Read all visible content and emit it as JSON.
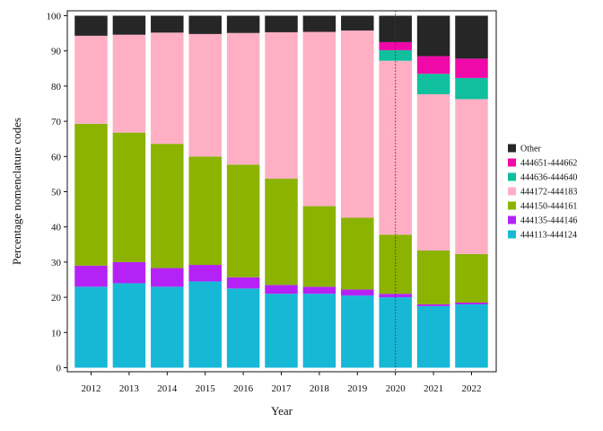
{
  "chart_data": {
    "type": "bar",
    "stacked": true,
    "title": "",
    "xlabel": "Year",
    "ylabel": "Percentage nomenclature codes",
    "ylim": [
      0,
      100
    ],
    "yticks": [
      0,
      10,
      20,
      30,
      40,
      50,
      60,
      70,
      80,
      90,
      100
    ],
    "grid": false,
    "legend_position": "right",
    "reference_line": {
      "x": "2020",
      "style": "dotted",
      "color": "#8b1a1a"
    },
    "categories": [
      "2012",
      "2013",
      "2014",
      "2015",
      "2016",
      "2017",
      "2018",
      "2019",
      "2020",
      "2021",
      "2022"
    ],
    "series": [
      {
        "name": "444113-444124",
        "color": "#17b8d6",
        "values": [
          23.0,
          24.0,
          23.0,
          24.5,
          22.5,
          21.0,
          21.0,
          20.5,
          20.0,
          17.5,
          18.0
        ]
      },
      {
        "name": "444135-444146",
        "color": "#b522f5",
        "values": [
          6.0,
          6.0,
          5.3,
          4.7,
          3.2,
          2.5,
          2.0,
          1.7,
          1.0,
          0.5,
          0.5
        ]
      },
      {
        "name": "444150-444161",
        "color": "#8bb300",
        "values": [
          40.3,
          36.8,
          35.3,
          30.8,
          32.0,
          30.2,
          22.9,
          20.4,
          16.8,
          15.3,
          13.8
        ]
      },
      {
        "name": "444172-444183",
        "color": "#ffafc4",
        "values": [
          25.0,
          27.8,
          31.6,
          34.8,
          37.4,
          41.6,
          49.5,
          53.2,
          49.4,
          44.4,
          44.0
        ]
      },
      {
        "name": "444636-444640",
        "color": "#0fbf9d",
        "values": [
          0,
          0,
          0,
          0,
          0,
          0,
          0,
          0,
          3.0,
          5.8,
          6.0
        ]
      },
      {
        "name": "444651-444662",
        "color": "#f008a8",
        "values": [
          0,
          0,
          0,
          0,
          0,
          0,
          0,
          0,
          2.3,
          5.0,
          5.5
        ]
      },
      {
        "name": "Other",
        "color": "#262626",
        "values": [
          5.7,
          5.4,
          4.8,
          5.2,
          4.9,
          4.7,
          4.6,
          4.2,
          7.5,
          11.5,
          12.2
        ]
      }
    ]
  }
}
